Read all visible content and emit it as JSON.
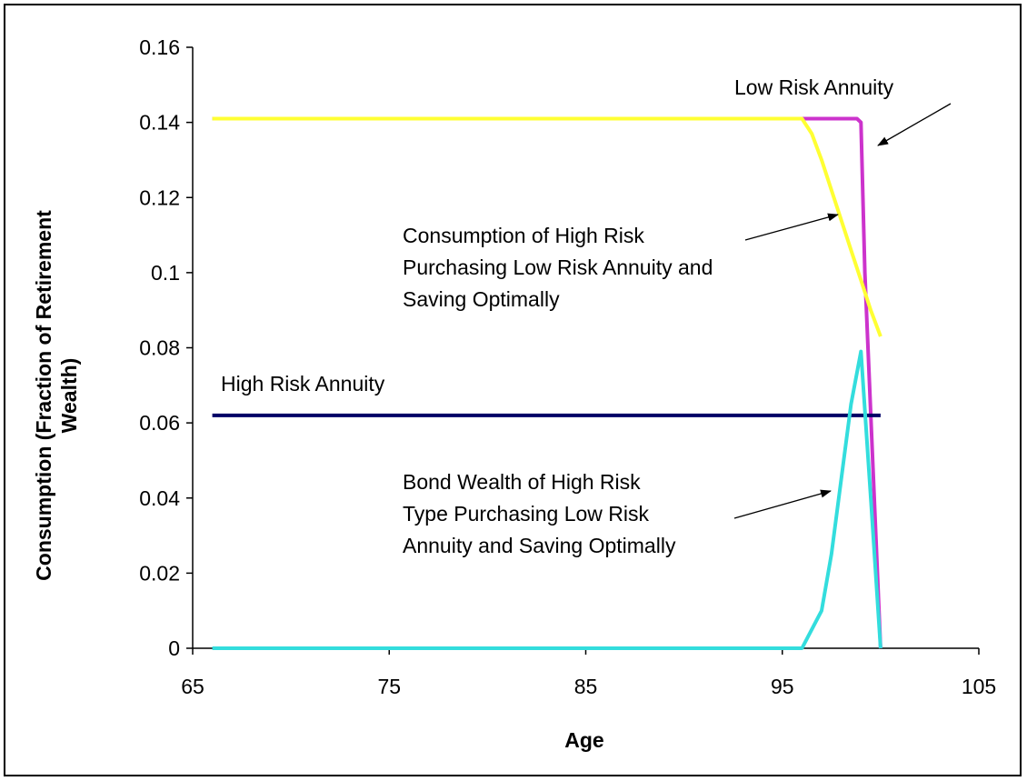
{
  "chart_data": {
    "type": "line",
    "title": "",
    "xlabel": "Age",
    "ylabel_lines": [
      "Consumption (Fraction of Retirement",
      "Wealth)"
    ],
    "xlim": [
      65,
      105
    ],
    "ylim": [
      0,
      0.16
    ],
    "x_ticks": [
      65,
      75,
      85,
      95,
      105
    ],
    "x_tick_labels": [
      "65",
      "75",
      "85",
      "95",
      "105"
    ],
    "y_ticks": [
      0,
      0.02,
      0.04,
      0.06,
      0.08,
      0.1,
      0.12,
      0.14,
      0.16
    ],
    "y_tick_labels": [
      "0",
      "0.02",
      "0.04",
      "0.06",
      "0.08",
      "0.1",
      "0.12",
      "0.14",
      "0.16"
    ],
    "grid": false,
    "legend": "none",
    "series": [
      {
        "key": "low_risk_annuity",
        "color": "#cc33cc",
        "x": [
          66,
          96,
          97,
          98,
          98.8,
          99,
          99.2,
          99.6,
          100
        ],
        "y": [
          0.141,
          0.141,
          0.141,
          0.141,
          0.141,
          0.14,
          0.1,
          0.05,
          0
        ]
      },
      {
        "key": "consumption_high_risk_low_annuity",
        "color": "#ffff33",
        "x": [
          66,
          96,
          96.5,
          97,
          97.5,
          98,
          98.5,
          99,
          99.5,
          100
        ],
        "y": [
          0.141,
          0.141,
          0.137,
          0.13,
          0.122,
          0.114,
          0.106,
          0.098,
          0.09,
          0.083
        ]
      },
      {
        "key": "high_risk_annuity",
        "color": "#000066",
        "x": [
          66,
          100
        ],
        "y": [
          0.062,
          0.062
        ]
      },
      {
        "key": "bond_wealth_high_risk",
        "color": "#33dddd",
        "x": [
          66,
          96,
          96.5,
          97,
          97.5,
          98,
          98.5,
          99,
          99.5,
          100
        ],
        "y": [
          0,
          0,
          0.005,
          0.01,
          0.025,
          0.045,
          0.065,
          0.079,
          0.04,
          0
        ]
      }
    ],
    "annotations": [
      {
        "key": "low_risk_annuity_label",
        "lines": [
          "Low Risk Annuity"
        ],
        "target": [
          99.5,
          0.115
        ]
      },
      {
        "key": "consumption_label",
        "lines": [
          "Consumption of High Risk",
          "Purchasing Low Risk Annuity and",
          "Saving Optimally"
        ],
        "target": [
          97.5,
          0.12
        ]
      },
      {
        "key": "high_risk_label",
        "lines": [
          "High Risk Annuity"
        ]
      },
      {
        "key": "bond_wealth_label",
        "lines": [
          "Bond Wealth of High Risk",
          "Type Purchasing Low Risk",
          "Annuity and Saving Optimally"
        ],
        "target": [
          97.5,
          0.046
        ]
      }
    ]
  }
}
